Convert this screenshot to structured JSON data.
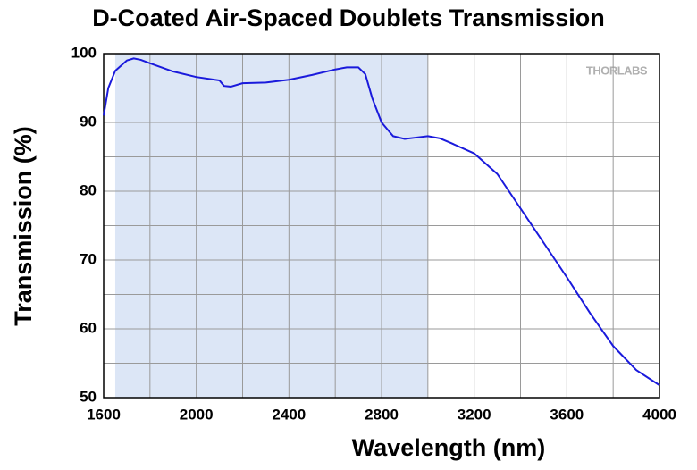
{
  "chart_data": {
    "type": "line",
    "title": "D-Coated Air-Spaced Doublets Transmission",
    "x_label": "Wavelength (nm)",
    "y_label": "Transmission (%)",
    "logo": "THORLABS",
    "xlim": [
      1600,
      4000
    ],
    "ylim": [
      50,
      100
    ],
    "xticks": [
      1600,
      2000,
      2400,
      2800,
      3200,
      3600,
      4000
    ],
    "yticks": [
      50,
      60,
      70,
      80,
      90,
      100
    ],
    "x_minor_ticks": [
      1800,
      2200,
      2600,
      3000,
      3400,
      3800
    ],
    "y_minor_ticks": [
      55,
      65,
      75,
      85,
      95
    ],
    "grid": true,
    "highlight_range": [
      1650,
      3000
    ],
    "highlight_color": "#dce6f6",
    "series": [
      {
        "name": "Transmission",
        "color": "#1a1adc",
        "x": [
          1600,
          1620,
          1650,
          1700,
          1730,
          1760,
          1800,
          1900,
          2000,
          2100,
          2120,
          2150,
          2200,
          2300,
          2400,
          2500,
          2600,
          2650,
          2700,
          2730,
          2760,
          2800,
          2850,
          2900,
          2950,
          3000,
          3050,
          3100,
          3200,
          3300,
          3400,
          3500,
          3600,
          3700,
          3800,
          3900,
          4000
        ],
        "values": [
          91,
          95,
          97.5,
          99,
          99.3,
          99.1,
          98.6,
          97.4,
          96.6,
          96.1,
          95.3,
          95.2,
          95.7,
          95.8,
          96.2,
          96.9,
          97.7,
          98.0,
          98.0,
          97.0,
          93.5,
          90,
          88,
          87.6,
          87.8,
          88.0,
          87.7,
          87.0,
          85.5,
          82.5,
          77.5,
          72.5,
          67.5,
          62.3,
          57.5,
          54.0,
          51.8
        ]
      }
    ]
  }
}
